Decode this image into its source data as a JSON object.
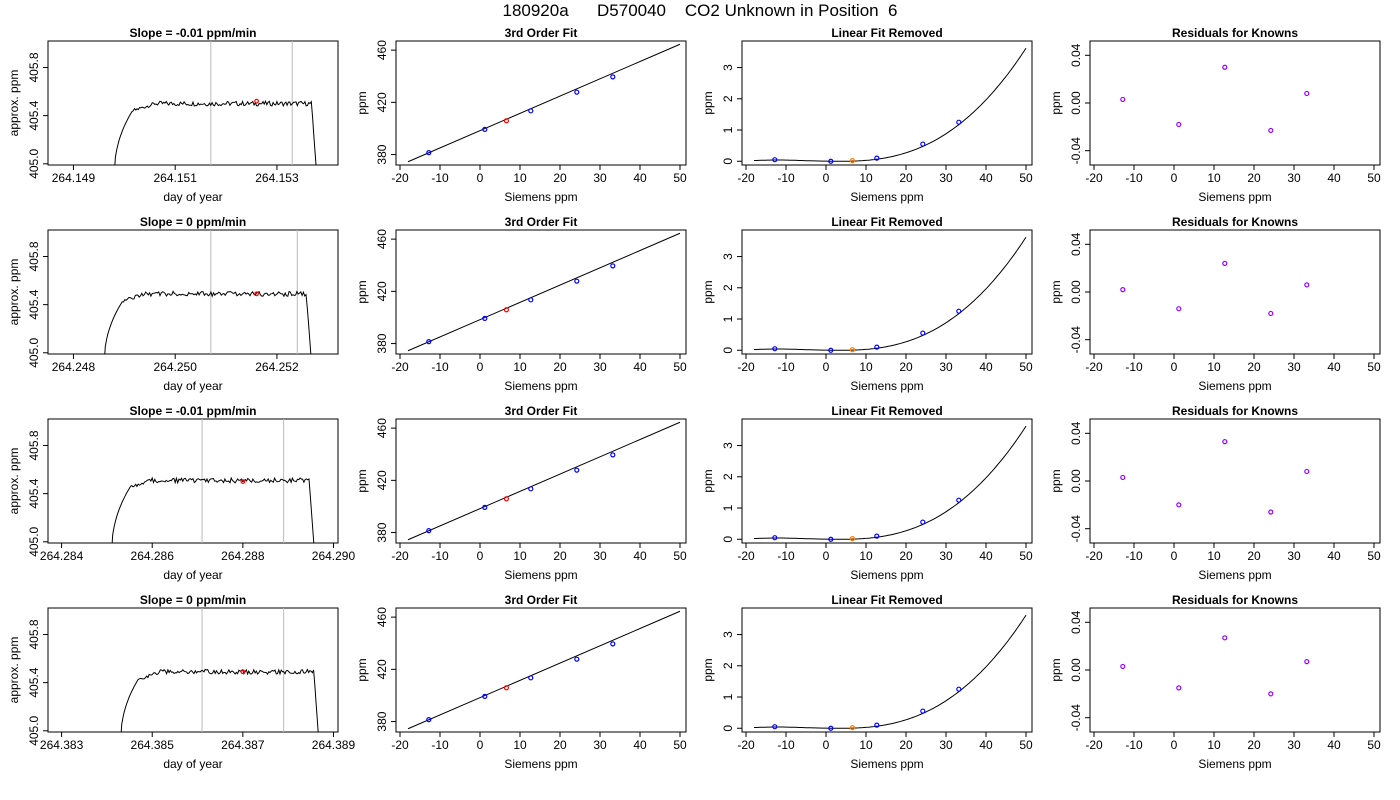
{
  "figure": {
    "title": "180920a      D570040    CO2 Unknown in Position  6"
  },
  "colors": {
    "known": "#0000ff",
    "unknown": "#ff0000",
    "unknown_lin": "#ff7f00",
    "residual": "#9900ff",
    "window": "#bbbbbb",
    "line": "#000000"
  },
  "chart_data": [
    {
      "row": 1,
      "panel": "trace",
      "type": "line",
      "title": "Slope =  -0.01  ppm/min",
      "xlabel": "day of year",
      "ylabel": "approx. ppm",
      "xlim": [
        264.1485,
        264.1542
      ],
      "ylim": [
        404.99,
        406.02
      ],
      "xticks": [
        "264.149",
        "264.151",
        "264.153"
      ],
      "xtick_values": [
        264.149,
        264.151,
        264.153
      ],
      "yticks": [
        "405.0",
        "405.4",
        "405.8"
      ],
      "ytick_values": [
        405.0,
        405.4,
        405.8
      ],
      "trace_start": 264.1498,
      "trace_end": 264.1538,
      "plateau": 405.5,
      "window": [
        264.1517,
        264.1533
      ],
      "unknown_point": {
        "x": 264.1526,
        "y": 405.52
      }
    },
    {
      "row": 1,
      "panel": "fit",
      "type": "scatter",
      "title": "3rd Order Fit",
      "xlabel": "Siemens ppm",
      "ylabel": "ppm",
      "xlim": [
        -21,
        51.5
      ],
      "ylim": [
        372,
        467
      ],
      "xticks": [
        "-20",
        "-10",
        "0",
        "10",
        "20",
        "30",
        "40",
        "50"
      ],
      "xtick_values": [
        -20,
        -10,
        0,
        10,
        20,
        30,
        40,
        50
      ],
      "yticks": [
        "380",
        "420",
        "460"
      ],
      "ytick_values": [
        380,
        420,
        460
      ],
      "line": {
        "x": [
          -18,
          50
        ],
        "y": [
          374.5,
          464.5
        ]
      },
      "knowns": {
        "x": [
          -12.8,
          1.2,
          12.7,
          24.2,
          33.2
        ],
        "y": [
          381.5,
          399.3,
          413.5,
          427.8,
          439.5
        ]
      },
      "unknown": {
        "x": 6.6,
        "y": 405.9
      }
    },
    {
      "row": 1,
      "panel": "linear_removed",
      "type": "line",
      "title": "Linear Fit Removed",
      "xlabel": "Siemens ppm",
      "ylabel": "ppm",
      "xlim": [
        -21,
        51.5
      ],
      "ylim": [
        -0.12,
        3.85
      ],
      "xticks": [
        "-20",
        "-10",
        "0",
        "10",
        "20",
        "30",
        "40",
        "50"
      ],
      "xtick_values": [
        -20,
        -10,
        0,
        10,
        20,
        30,
        40,
        50
      ],
      "yticks": [
        "0",
        "1",
        "2",
        "3"
      ],
      "ytick_values": [
        0,
        1,
        2,
        3
      ],
      "curve_x_range": [
        -18,
        50
      ],
      "knowns": {
        "x": [
          -12.8,
          1.2,
          12.7,
          24.2,
          33.2
        ],
        "y": [
          0.05,
          0.0,
          0.1,
          0.55,
          1.25
        ]
      },
      "unknown": {
        "x": 6.6,
        "y": 0.02
      }
    },
    {
      "row": 1,
      "panel": "residuals",
      "type": "scatter",
      "title": "Residuals for Knowns",
      "xlabel": "Siemens ppm",
      "ylabel": "ppm",
      "xlim": [
        -21,
        51.5
      ],
      "ylim": [
        -0.052,
        0.052
      ],
      "xticks": [
        "-20",
        "-10",
        "0",
        "10",
        "20",
        "30",
        "40",
        "50"
      ],
      "xtick_values": [
        -20,
        -10,
        0,
        10,
        20,
        30,
        40,
        50
      ],
      "yticks": [
        "-0.04",
        "0.00",
        "0.04"
      ],
      "ytick_values": [
        -0.04,
        0.0,
        0.04
      ],
      "points": {
        "x": [
          -12.8,
          1.2,
          12.7,
          24.2,
          33.2
        ],
        "y": [
          0.003,
          -0.018,
          0.03,
          -0.023,
          0.008
        ]
      }
    },
    {
      "row": 2,
      "panel": "trace",
      "type": "line",
      "title": "Slope =  0  ppm/min",
      "xlabel": "day of year",
      "ylabel": "approx. ppm",
      "xlim": [
        264.2475,
        264.2532
      ],
      "ylim": [
        404.99,
        406.02
      ],
      "xticks": [
        "264.248",
        "264.250",
        "264.252"
      ],
      "xtick_values": [
        264.248,
        264.25,
        264.252
      ],
      "yticks": [
        "405.0",
        "405.4",
        "405.8"
      ],
      "ytick_values": [
        405.0,
        405.4,
        405.8
      ],
      "trace_start": 264.2486,
      "trace_end": 264.2527,
      "plateau": 405.49,
      "window": [
        264.2507,
        264.2524
      ],
      "unknown_point": {
        "x": 264.2516,
        "y": 405.49
      }
    },
    {
      "row": 2,
      "panel": "fit",
      "type": "scatter",
      "title": "3rd Order Fit",
      "xlabel": "Siemens ppm",
      "ylabel": "ppm",
      "xlim": [
        -21,
        51.5
      ],
      "ylim": [
        372,
        467
      ],
      "xticks": [
        "-20",
        "-10",
        "0",
        "10",
        "20",
        "30",
        "40",
        "50"
      ],
      "xtick_values": [
        -20,
        -10,
        0,
        10,
        20,
        30,
        40,
        50
      ],
      "yticks": [
        "380",
        "420",
        "460"
      ],
      "ytick_values": [
        380,
        420,
        460
      ],
      "line": {
        "x": [
          -18,
          50
        ],
        "y": [
          374.5,
          464.5
        ]
      },
      "knowns": {
        "x": [
          -12.8,
          1.2,
          12.7,
          24.2,
          33.2
        ],
        "y": [
          381.5,
          399.3,
          413.5,
          427.8,
          439.5
        ]
      },
      "unknown": {
        "x": 6.6,
        "y": 405.9
      }
    },
    {
      "row": 2,
      "panel": "linear_removed",
      "type": "line",
      "title": "Linear Fit Removed",
      "xlabel": "Siemens ppm",
      "ylabel": "ppm",
      "xlim": [
        -21,
        51.5
      ],
      "ylim": [
        -0.12,
        3.85
      ],
      "xticks": [
        "-20",
        "-10",
        "0",
        "10",
        "20",
        "30",
        "40",
        "50"
      ],
      "xtick_values": [
        -20,
        -10,
        0,
        10,
        20,
        30,
        40,
        50
      ],
      "yticks": [
        "0",
        "1",
        "2",
        "3"
      ],
      "ytick_values": [
        0,
        1,
        2,
        3
      ],
      "curve_x_range": [
        -18,
        50
      ],
      "knowns": {
        "x": [
          -12.8,
          1.2,
          12.7,
          24.2,
          33.2
        ],
        "y": [
          0.05,
          0.0,
          0.1,
          0.55,
          1.25
        ]
      },
      "unknown": {
        "x": 6.6,
        "y": 0.02
      }
    },
    {
      "row": 2,
      "panel": "residuals",
      "type": "scatter",
      "title": "Residuals for Knowns",
      "xlabel": "Siemens ppm",
      "ylabel": "ppm",
      "xlim": [
        -21,
        51.5
      ],
      "ylim": [
        -0.052,
        0.052
      ],
      "xticks": [
        "-20",
        "-10",
        "0",
        "10",
        "20",
        "30",
        "40",
        "50"
      ],
      "xtick_values": [
        -20,
        -10,
        0,
        10,
        20,
        30,
        40,
        50
      ],
      "yticks": [
        "-0.04",
        "0.00",
        "0.04"
      ],
      "ytick_values": [
        -0.04,
        0.0,
        0.04
      ],
      "points": {
        "x": [
          -12.8,
          1.2,
          12.7,
          24.2,
          33.2
        ],
        "y": [
          0.002,
          -0.014,
          0.024,
          -0.018,
          0.006
        ]
      }
    },
    {
      "row": 3,
      "panel": "trace",
      "type": "line",
      "title": "Slope =  -0.01  ppm/min",
      "xlabel": "day of year",
      "ylabel": "approx. ppm",
      "xlim": [
        264.2837,
        264.2901
      ],
      "ylim": [
        404.99,
        406.02
      ],
      "xticks": [
        "264.284",
        "264.286",
        "264.288",
        "264.290"
      ],
      "xtick_values": [
        264.284,
        264.286,
        264.288,
        264.29
      ],
      "yticks": [
        "405.0",
        "405.4",
        "405.8"
      ],
      "ytick_values": [
        405.0,
        405.4,
        405.8
      ],
      "trace_start": 264.2851,
      "trace_end": 264.2896,
      "plateau": 405.51,
      "window": [
        264.2871,
        264.2889
      ],
      "unknown_point": {
        "x": 264.288,
        "y": 405.5
      }
    },
    {
      "row": 3,
      "panel": "fit",
      "type": "scatter",
      "title": "3rd Order Fit",
      "xlabel": "Siemens ppm",
      "ylabel": "ppm",
      "xlim": [
        -21,
        51.5
      ],
      "ylim": [
        372,
        467
      ],
      "xticks": [
        "-20",
        "-10",
        "0",
        "10",
        "20",
        "30",
        "40",
        "50"
      ],
      "xtick_values": [
        -20,
        -10,
        0,
        10,
        20,
        30,
        40,
        50
      ],
      "yticks": [
        "380",
        "420",
        "460"
      ],
      "ytick_values": [
        380,
        420,
        460
      ],
      "line": {
        "x": [
          -18,
          50
        ],
        "y": [
          374.5,
          464.5
        ]
      },
      "knowns": {
        "x": [
          -12.8,
          1.2,
          12.7,
          24.2,
          33.2
        ],
        "y": [
          381.5,
          399.3,
          413.5,
          427.8,
          439.5
        ]
      },
      "unknown": {
        "x": 6.6,
        "y": 405.9
      }
    },
    {
      "row": 3,
      "panel": "linear_removed",
      "type": "line",
      "title": "Linear Fit Removed",
      "xlabel": "Siemens ppm",
      "ylabel": "ppm",
      "xlim": [
        -21,
        51.5
      ],
      "ylim": [
        -0.12,
        3.85
      ],
      "xticks": [
        "-20",
        "-10",
        "0",
        "10",
        "20",
        "30",
        "40",
        "50"
      ],
      "xtick_values": [
        -20,
        -10,
        0,
        10,
        20,
        30,
        40,
        50
      ],
      "yticks": [
        "0",
        "1",
        "2",
        "3"
      ],
      "ytick_values": [
        0,
        1,
        2,
        3
      ],
      "curve_x_range": [
        -18,
        50
      ],
      "knowns": {
        "x": [
          -12.8,
          1.2,
          12.7,
          24.2,
          33.2
        ],
        "y": [
          0.05,
          0.0,
          0.1,
          0.55,
          1.25
        ]
      },
      "unknown": {
        "x": 6.6,
        "y": 0.02
      }
    },
    {
      "row": 3,
      "panel": "residuals",
      "type": "scatter",
      "title": "Residuals for Knowns",
      "xlabel": "Siemens ppm",
      "ylabel": "ppm",
      "xlim": [
        -21,
        51.5
      ],
      "ylim": [
        -0.052,
        0.052
      ],
      "xticks": [
        "-20",
        "-10",
        "0",
        "10",
        "20",
        "30",
        "40",
        "50"
      ],
      "xtick_values": [
        -20,
        -10,
        0,
        10,
        20,
        30,
        40,
        50
      ],
      "yticks": [
        "-0.04",
        "0.00",
        "0.04"
      ],
      "ytick_values": [
        -0.04,
        0.0,
        0.04
      ],
      "points": {
        "x": [
          -12.8,
          1.2,
          12.7,
          24.2,
          33.2
        ],
        "y": [
          0.003,
          -0.02,
          0.033,
          -0.026,
          0.008
        ]
      }
    },
    {
      "row": 4,
      "panel": "trace",
      "type": "line",
      "title": "Slope =  0  ppm/min",
      "xlabel": "day of year",
      "ylabel": "approx. ppm",
      "xlim": [
        264.3827,
        264.3891
      ],
      "ylim": [
        404.99,
        406.02
      ],
      "xticks": [
        "264.383",
        "264.385",
        "264.387",
        "264.389"
      ],
      "xtick_values": [
        264.383,
        264.385,
        264.387,
        264.389
      ],
      "yticks": [
        "405.0",
        "405.4",
        "405.8"
      ],
      "ytick_values": [
        405.0,
        405.4,
        405.8
      ],
      "trace_start": 264.3843,
      "trace_end": 264.3887,
      "plateau": 405.49,
      "window": [
        264.3861,
        264.3879
      ],
      "unknown_point": {
        "x": 264.387,
        "y": 405.49
      }
    },
    {
      "row": 4,
      "panel": "fit",
      "type": "scatter",
      "title": "3rd Order Fit",
      "xlabel": "Siemens ppm",
      "ylabel": "ppm",
      "xlim": [
        -21,
        51.5
      ],
      "ylim": [
        372,
        467
      ],
      "xticks": [
        "-20",
        "-10",
        "0",
        "10",
        "20",
        "30",
        "40",
        "50"
      ],
      "xtick_values": [
        -20,
        -10,
        0,
        10,
        20,
        30,
        40,
        50
      ],
      "yticks": [
        "380",
        "420",
        "460"
      ],
      "ytick_values": [
        380,
        420,
        460
      ],
      "line": {
        "x": [
          -18,
          50
        ],
        "y": [
          374.5,
          464.5
        ]
      },
      "knowns": {
        "x": [
          -12.8,
          1.2,
          12.7,
          24.2,
          33.2
        ],
        "y": [
          381.5,
          399.3,
          413.5,
          427.8,
          439.5
        ]
      },
      "unknown": {
        "x": 6.6,
        "y": 405.9
      }
    },
    {
      "row": 4,
      "panel": "linear_removed",
      "type": "line",
      "title": "Linear Fit Removed",
      "xlabel": "Siemens ppm",
      "ylabel": "ppm",
      "xlim": [
        -21,
        51.5
      ],
      "ylim": [
        -0.12,
        3.85
      ],
      "xticks": [
        "-20",
        "-10",
        "0",
        "10",
        "20",
        "30",
        "40",
        "50"
      ],
      "xtick_values": [
        -20,
        -10,
        0,
        10,
        20,
        30,
        40,
        50
      ],
      "yticks": [
        "0",
        "1",
        "2",
        "3"
      ],
      "ytick_values": [
        0,
        1,
        2,
        3
      ],
      "curve_x_range": [
        -18,
        50
      ],
      "knowns": {
        "x": [
          -12.8,
          1.2,
          12.7,
          24.2,
          33.2
        ],
        "y": [
          0.05,
          0.0,
          0.1,
          0.55,
          1.25
        ]
      },
      "unknown": {
        "x": 6.6,
        "y": 0.02
      }
    },
    {
      "row": 4,
      "panel": "residuals",
      "type": "scatter",
      "title": "Residuals for Knowns",
      "xlabel": "Siemens ppm",
      "ylabel": "ppm",
      "xlim": [
        -21,
        51.5
      ],
      "ylim": [
        -0.052,
        0.052
      ],
      "xticks": [
        "-20",
        "-10",
        "0",
        "10",
        "20",
        "30",
        "40",
        "50"
      ],
      "xtick_values": [
        -20,
        -10,
        0,
        10,
        20,
        30,
        40,
        50
      ],
      "yticks": [
        "-0.04",
        "0.00",
        "0.04"
      ],
      "ytick_values": [
        -0.04,
        0.0,
        0.04
      ],
      "points": {
        "x": [
          -12.8,
          1.2,
          12.7,
          24.2,
          33.2
        ],
        "y": [
          0.003,
          -0.015,
          0.027,
          -0.02,
          0.007
        ]
      }
    }
  ]
}
